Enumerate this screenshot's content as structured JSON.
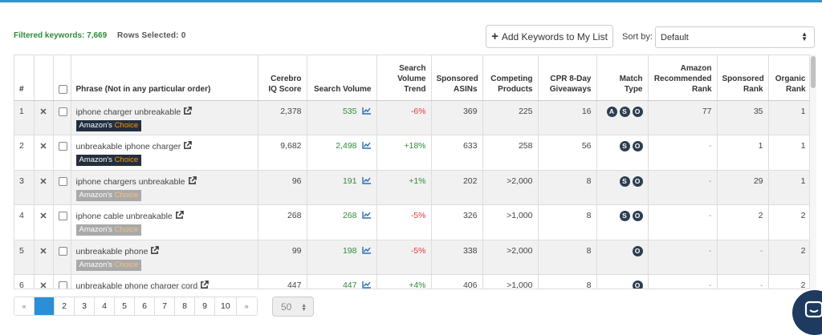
{
  "toolbar": {
    "filtered_label": "Filtered keywords:",
    "filtered_count": "7,669",
    "rows_selected": "Rows Selected: 0",
    "add_button": "Add Keywords to My List",
    "sort_label": "Sort by:",
    "sort_value": "Default"
  },
  "columns": {
    "index": "#",
    "phrase": "Phrase (Not in any particular order)",
    "cerebro": "Cerebro IQ Score",
    "search_volume": "Search Volume",
    "sv_trend": "Search Volume Trend",
    "sponsored_asins": "Sponsored ASINs",
    "competing": "Competing Products",
    "cpr": "CPR 8-Day Giveaways",
    "match": "Match Type",
    "amazon_rank": "Amazon Recommended Rank",
    "sponsored_rank": "Sponsored Rank",
    "organic_rank": "Organic Rank"
  },
  "rows": [
    {
      "idx": "1",
      "phrase": "iphone charger unbreakable",
      "badge": "dark",
      "cerebro": "2,378",
      "sv": "535",
      "trend": "-6%",
      "trend_color": "red",
      "asins": "369",
      "competing": "225",
      "cpr": "16",
      "match": [
        "A",
        "S",
        "O"
      ],
      "amazon_rank": "77",
      "sponsored_rank": "35",
      "organic_rank": "1"
    },
    {
      "idx": "2",
      "phrase": "unbreakable iphone charger",
      "badge": "dark",
      "cerebro": "9,682",
      "sv": "2,498",
      "trend": "+18%",
      "trend_color": "green",
      "asins": "633",
      "competing": "258",
      "cpr": "56",
      "match": [
        "S",
        "O"
      ],
      "amazon_rank": "-",
      "sponsored_rank": "1",
      "organic_rank": "1"
    },
    {
      "idx": "3",
      "phrase": "iphone chargers unbreakable",
      "badge": "grey",
      "cerebro": "96",
      "sv": "191",
      "trend": "+1%",
      "trend_color": "green",
      "asins": "202",
      "competing": ">2,000",
      "cpr": "8",
      "match": [
        "S",
        "O"
      ],
      "amazon_rank": "-",
      "sponsored_rank": "29",
      "organic_rank": "1"
    },
    {
      "idx": "4",
      "phrase": "iphone cable unbreakable",
      "badge": "grey",
      "cerebro": "268",
      "sv": "268",
      "trend": "-5%",
      "trend_color": "red",
      "asins": "326",
      "competing": ">1,000",
      "cpr": "8",
      "match": [
        "S",
        "O"
      ],
      "amazon_rank": "-",
      "sponsored_rank": "2",
      "organic_rank": "2"
    },
    {
      "idx": "5",
      "phrase": "unbreakable phone",
      "badge": "grey",
      "cerebro": "99",
      "sv": "198",
      "trend": "-5%",
      "trend_color": "red",
      "asins": "338",
      "competing": ">2,000",
      "cpr": "8",
      "match": [
        "O"
      ],
      "amazon_rank": "-",
      "sponsored_rank": "-",
      "organic_rank": "2"
    },
    {
      "idx": "6",
      "phrase": "unbreakable phone charger cord",
      "badge": "",
      "cerebro": "447",
      "sv": "447",
      "trend": "+4%",
      "trend_color": "green",
      "asins": "406",
      "competing": ">1,000",
      "cpr": "8",
      "match": [
        "O"
      ],
      "amazon_rank": "-",
      "sponsored_rank": "-",
      "organic_rank": "2"
    }
  ],
  "badge_text": {
    "amazons": "Amazon's",
    "choice": "Choice"
  },
  "pagination": {
    "prev": "«",
    "pages": [
      "1",
      "2",
      "3",
      "4",
      "5",
      "6",
      "7",
      "8",
      "9",
      "10"
    ],
    "active": "1",
    "next": "»",
    "per_page": "50"
  },
  "colors": {
    "accent": "#2a97c4",
    "green": "#2e8b3a",
    "red": "#e0393e",
    "badge_dark": "#232f3e",
    "chat": "#1f3a5f"
  }
}
